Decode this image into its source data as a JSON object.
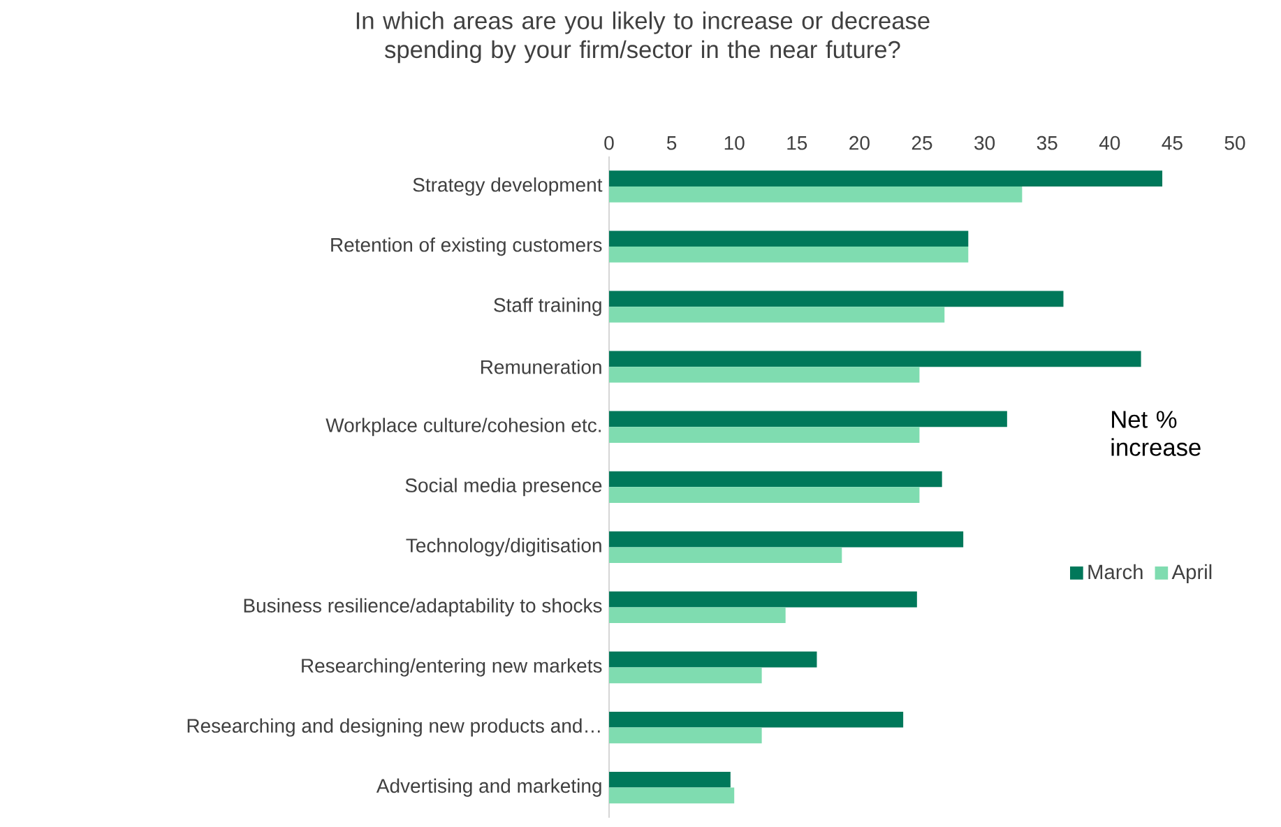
{
  "chart_data": {
    "type": "bar",
    "orientation": "horizontal",
    "title": "In which areas are you likely to increase or decrease spending by your firm/sector in the near future?",
    "categories": [
      "Strategy development",
      "Retention of existing customers",
      "Staff training",
      "Remuneration",
      "Workplace culture/cohesion etc.",
      "Social media presence",
      "Technology/digitisation",
      "Business resilience/adaptability to shocks",
      "Researching/entering new markets",
      "Researching and designing new products and…",
      "Advertising and marketing"
    ],
    "series": [
      {
        "name": "March",
        "color": "#00785a",
        "values": [
          44.2,
          28.7,
          36.3,
          42.5,
          31.8,
          26.6,
          28.3,
          24.6,
          16.6,
          23.5,
          9.7
        ]
      },
      {
        "name": "April",
        "color": "#7fdcb0",
        "values": [
          33.0,
          28.7,
          26.8,
          24.8,
          24.8,
          24.8,
          18.6,
          14.1,
          12.2,
          12.2,
          10.0
        ]
      }
    ],
    "xlim": [
      0,
      50
    ],
    "xticks": [
      0,
      5,
      10,
      15,
      20,
      25,
      30,
      35,
      40,
      45,
      50
    ],
    "annotations": [
      "Net % increase"
    ],
    "legend": "right",
    "grid": false
  }
}
